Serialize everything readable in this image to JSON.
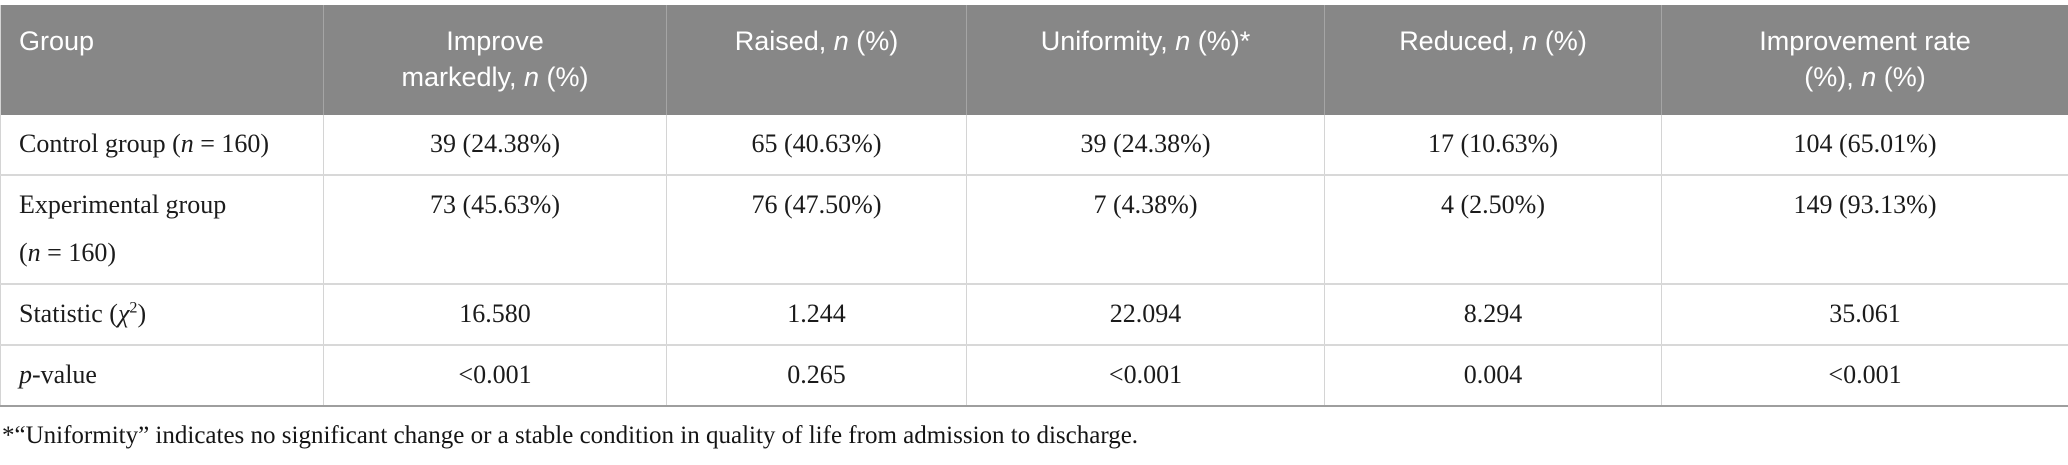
{
  "colors": {
    "header_bg": "#878787",
    "header_text": "#ffffff",
    "body_text": "#1b1b1b",
    "cell_border": "#d4d4d4",
    "header_border": "#a5a5a5",
    "table_bottom_border": "#9e9e9e"
  },
  "chart_data": {
    "type": "table",
    "columns": [
      "Group",
      "Improve markedly, n (%)",
      "Raised, n (%)",
      "Uniformity, n (%)*",
      "Reduced, n (%)",
      "Improvement rate (%), n (%)"
    ],
    "rows": [
      [
        "Control group (n = 160)",
        "39 (24.38%)",
        "65 (40.63%)",
        "39 (24.38%)",
        "17 (10.63%)",
        "104 (65.01%)"
      ],
      [
        "Experimental group (n = 160)",
        "73 (45.63%)",
        "76 (47.50%)",
        "7 (4.38%)",
        "4 (2.50%)",
        "149 (93.13%)"
      ],
      [
        "Statistic (χ²)",
        "16.580",
        "1.244",
        "22.094",
        "8.294",
        "35.061"
      ],
      [
        "p-value",
        "<0.001",
        "0.265",
        "<0.001",
        "0.004",
        "<0.001"
      ]
    ]
  },
  "table": {
    "columns": [
      {
        "label_runs": [
          {
            "t": "Group"
          }
        ]
      },
      {
        "label_runs": [
          {
            "t": "Improve"
          },
          {
            "br": true
          },
          {
            "t": "markedly, "
          },
          {
            "t": "n",
            "i": true
          },
          {
            "t": " (%)"
          }
        ]
      },
      {
        "label_runs": [
          {
            "t": "Raised, "
          },
          {
            "t": "n",
            "i": true
          },
          {
            "t": " (%)"
          }
        ]
      },
      {
        "label_runs": [
          {
            "t": "Uniformity, "
          },
          {
            "t": "n",
            "i": true
          },
          {
            "t": " (%)*"
          }
        ]
      },
      {
        "label_runs": [
          {
            "t": "Reduced, "
          },
          {
            "t": "n",
            "i": true
          },
          {
            "t": " (%)"
          }
        ]
      },
      {
        "label_runs": [
          {
            "t": "Improvement rate"
          },
          {
            "br": true
          },
          {
            "t": "(%), "
          },
          {
            "t": "n",
            "i": true
          },
          {
            "t": " (%)"
          }
        ]
      }
    ],
    "rows": [
      {
        "label_runs": [
          {
            "t": "Control group ("
          },
          {
            "t": "n",
            "i": true
          },
          {
            "t": " = 160)"
          }
        ],
        "values": [
          "39 (24.38%)",
          "65 (40.63%)",
          "39 (24.38%)",
          "17 (10.63%)",
          "104 (65.01%)"
        ]
      },
      {
        "label_runs": [
          {
            "t": "Experimental group"
          },
          {
            "br": true
          },
          {
            "t": "("
          },
          {
            "t": "n",
            "i": true
          },
          {
            "t": " = 160)"
          }
        ],
        "values": [
          "73 (45.63%)",
          "76 (47.50%)",
          "7 (4.38%)",
          "4 (2.50%)",
          "149 (93.13%)"
        ]
      },
      {
        "label_runs": [
          {
            "t": "Statistic ("
          },
          {
            "t": "χ",
            "i": true
          },
          {
            "t": "2",
            "sup": true
          },
          {
            "t": ")"
          }
        ],
        "values": [
          "16.580",
          "1.244",
          "22.094",
          "8.294",
          "35.061"
        ]
      },
      {
        "label_runs": [
          {
            "t": "p",
            "i": true
          },
          {
            "t": "-value"
          }
        ],
        "values": [
          "<0.001",
          "0.265",
          "<0.001",
          "0.004",
          "<0.001"
        ]
      }
    ],
    "footnote": "*“Uniformity” indicates no significant change or a stable condition in quality of life from admission to discharge."
  }
}
